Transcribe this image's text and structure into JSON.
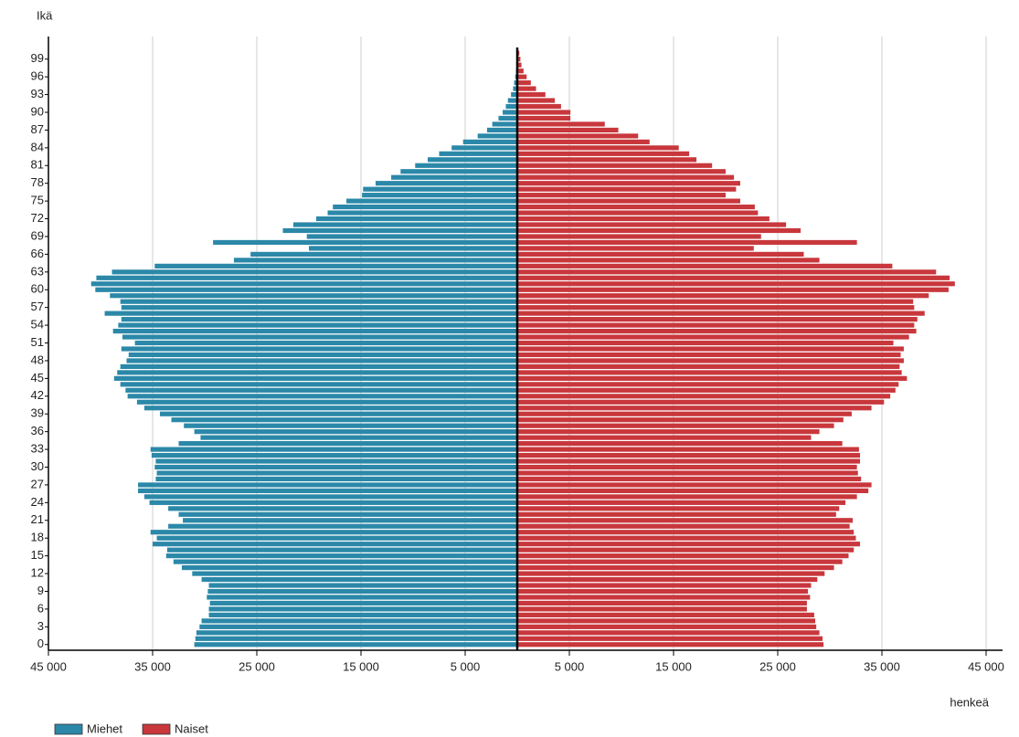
{
  "chart_data": {
    "type": "population-pyramid",
    "y_label": "Ikä",
    "x_label": "henkeä",
    "ages": [
      0,
      1,
      2,
      3,
      4,
      5,
      6,
      7,
      8,
      9,
      10,
      11,
      12,
      13,
      14,
      15,
      16,
      17,
      18,
      19,
      20,
      21,
      22,
      23,
      24,
      25,
      26,
      27,
      28,
      29,
      30,
      31,
      32,
      33,
      34,
      35,
      36,
      37,
      38,
      39,
      40,
      41,
      42,
      43,
      44,
      45,
      46,
      47,
      48,
      49,
      50,
      51,
      52,
      53,
      54,
      55,
      56,
      57,
      58,
      59,
      60,
      61,
      62,
      63,
      64,
      65,
      66,
      67,
      68,
      69,
      70,
      71,
      72,
      73,
      74,
      75,
      76,
      77,
      78,
      79,
      80,
      81,
      82,
      83,
      84,
      85,
      86,
      87,
      88,
      89,
      90,
      91,
      92,
      93,
      94,
      95,
      96,
      97,
      98,
      99,
      100
    ],
    "ylim": [
      -0.5,
      100.5
    ],
    "yticks": [
      0,
      3,
      6,
      9,
      12,
      15,
      18,
      21,
      24,
      27,
      30,
      33,
      36,
      39,
      42,
      45,
      48,
      51,
      54,
      57,
      60,
      63,
      66,
      69,
      72,
      75,
      78,
      81,
      84,
      87,
      90,
      93,
      96,
      99
    ],
    "xlim": [
      -45000,
      45000
    ],
    "xticks": [
      {
        "value": -45000,
        "label": "45 000"
      },
      {
        "value": -35000,
        "label": "35 000"
      },
      {
        "value": -25000,
        "label": "25 000"
      },
      {
        "value": -15000,
        "label": "15 000"
      },
      {
        "value": -5000,
        "label": "5 000"
      },
      {
        "value": 5000,
        "label": "5 000"
      },
      {
        "value": 15000,
        "label": "15 000"
      },
      {
        "value": 25000,
        "label": "25 000"
      },
      {
        "value": 35000,
        "label": "35 000"
      },
      {
        "value": 45000,
        "label": "45 000"
      }
    ],
    "grid": true,
    "legend": "bottom-left",
    "series": [
      {
        "name": "Miehet",
        "color": "#2b88a8",
        "side": "left",
        "values": [
          31000,
          30900,
          30800,
          30500,
          30300,
          29600,
          29600,
          29500,
          29800,
          29700,
          29600,
          30300,
          31200,
          32200,
          33000,
          33700,
          33600,
          35000,
          34600,
          35200,
          33500,
          32100,
          32500,
          33500,
          35300,
          35800,
          36400,
          36400,
          34700,
          34600,
          34800,
          34700,
          35100,
          35200,
          32500,
          30400,
          31000,
          32000,
          33200,
          34300,
          35800,
          36500,
          37400,
          37600,
          38100,
          38700,
          38400,
          38100,
          37500,
          37300,
          38000,
          36700,
          37900,
          38800,
          38300,
          38000,
          39600,
          38000,
          38100,
          39100,
          40500,
          40900,
          40400,
          38900,
          34800,
          27200,
          25600,
          20000,
          29200,
          20200,
          22500,
          21500,
          19300,
          18200,
          17700,
          16400,
          14900,
          14800,
          13600,
          12100,
          11200,
          9800,
          8600,
          7500,
          6300,
          5200,
          3800,
          2900,
          2400,
          1800,
          1400,
          1100,
          900,
          600,
          400,
          300,
          200,
          130,
          80,
          40,
          30
        ]
      },
      {
        "name": "Naiset",
        "color": "#c8373c",
        "side": "right",
        "values": [
          29400,
          29300,
          29000,
          28700,
          28600,
          28500,
          27800,
          27800,
          28100,
          27900,
          28200,
          28800,
          29500,
          30400,
          31200,
          31800,
          32300,
          32900,
          32500,
          32300,
          31900,
          32200,
          30600,
          30900,
          31500,
          32600,
          33700,
          34000,
          33000,
          32700,
          32600,
          32900,
          32900,
          32800,
          31200,
          28200,
          29000,
          30400,
          31300,
          32100,
          34000,
          35200,
          35800,
          36300,
          36600,
          37400,
          36900,
          36700,
          37100,
          36800,
          37100,
          36100,
          37600,
          38300,
          38100,
          38400,
          39100,
          38100,
          38000,
          39500,
          41400,
          42000,
          41500,
          40200,
          36000,
          29000,
          27500,
          22700,
          32600,
          23400,
          27200,
          25800,
          24200,
          23100,
          22800,
          21400,
          20000,
          21000,
          21400,
          20800,
          20000,
          18700,
          17200,
          16500,
          15500,
          12700,
          11600,
          9700,
          8400,
          5100,
          5100,
          4200,
          3600,
          2700,
          1800,
          1300,
          900,
          600,
          400,
          300,
          200
        ]
      }
    ]
  }
}
